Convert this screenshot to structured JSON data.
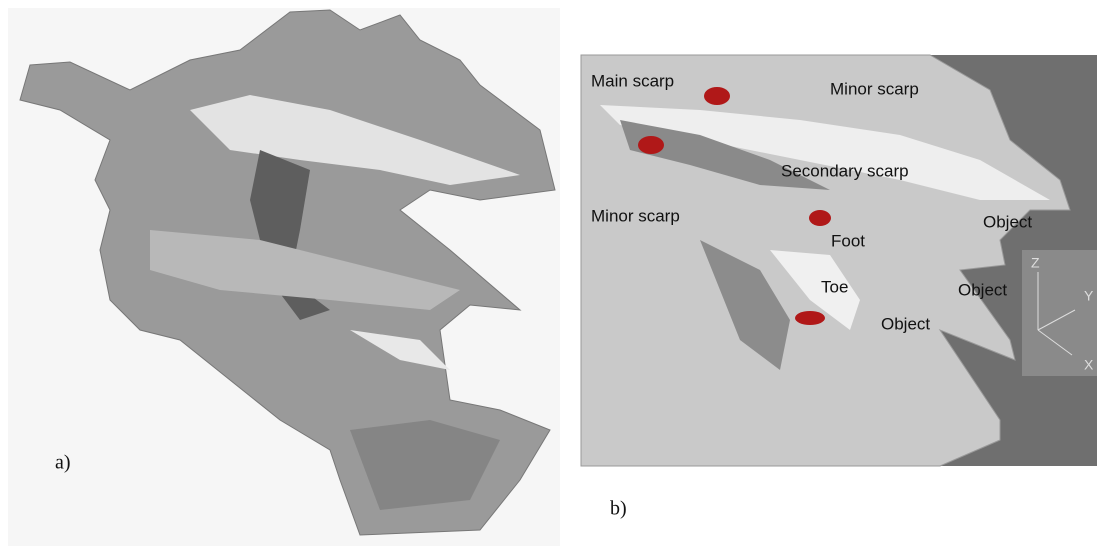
{
  "panels": [
    {
      "label": "a)"
    },
    {
      "label": "b)",
      "annotations": [
        {
          "text": "Main scarp"
        },
        {
          "text": "Minor scarp"
        },
        {
          "text": "Secondary scarp"
        },
        {
          "text": "Minor scarp"
        },
        {
          "text": "Object"
        },
        {
          "text": "Foot"
        },
        {
          "text": "Object"
        },
        {
          "text": "Toe"
        },
        {
          "text": "Object"
        }
      ],
      "axes": [
        "Z",
        "Y",
        "X"
      ]
    }
  ]
}
